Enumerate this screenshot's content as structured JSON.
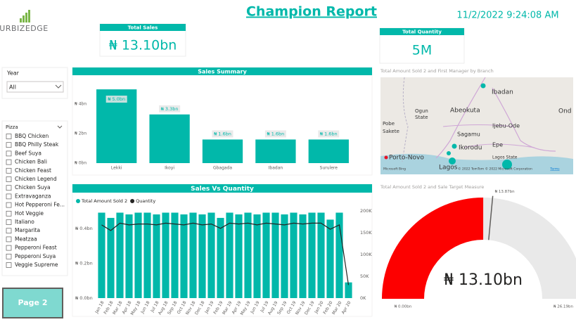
{
  "header": {
    "logo": "URBIZEDGE",
    "title": "Champion Report",
    "datetime": "11/2/2022 9:24:08 AM"
  },
  "cards": [
    {
      "title": "Total Sales",
      "value": "₦ 13.10bn"
    },
    {
      "title": "Total Quantity",
      "value": "5M"
    }
  ],
  "slicers": {
    "year": {
      "title": "Year",
      "selected": "All"
    },
    "pizza": {
      "title": "Pizza",
      "items": [
        "BBQ Chicken",
        "BBQ Philly Steak",
        "Beef Suya",
        "Chicken Bali",
        "Chicken Feast",
        "Chicken Legend",
        "Chicken Suya",
        "Extravaganza",
        "Hot Pepperoni Fe...",
        "Hot Veggie",
        "Italiano",
        "Margarita",
        "Meatzaa",
        "Pepperoni Feast",
        "Pepperoni Suya",
        "Veggie Supreme"
      ]
    }
  },
  "button": "Page 2",
  "map": {
    "title": "Total Amount Sold 2 and First Manager by Branch",
    "labels": [
      "Ibadan",
      "Ogun",
      "State",
      "Abeokuta",
      "Sakete",
      "Pobe",
      "Sagamu",
      "Ijebu-Ode",
      "Ikorodu",
      "Epe",
      "Lagos State",
      "Porto-Novo",
      "Lagos",
      "Ond"
    ],
    "provider": "Microsoft Bing",
    "attribution": "© 2022 TomTom © 2022 Microsoft Corporation",
    "terms": "Terms"
  },
  "chart_data": [
    {
      "type": "bar",
      "title": "Sales Summary",
      "categories": [
        "Lekki",
        "Ikoyi",
        "Gbagada",
        "Ibadan",
        "Surulere"
      ],
      "values": [
        5.0,
        3.3,
        1.6,
        1.6,
        1.6
      ],
      "value_labels": [
        "₦ 5.0bn",
        "₦ 3.3bn",
        "₦ 1.6bn",
        "₦ 1.6bn",
        "₦ 1.6bn"
      ],
      "color": "#01b8aa",
      "ylim": [
        0,
        5.1
      ],
      "yticks": [
        {
          "value": 0,
          "label": "₦ 0bn"
        },
        {
          "value": 2,
          "label": "₦ 2bn"
        },
        {
          "value": 4,
          "label": "₦ 4bn"
        }
      ]
    },
    {
      "type": "combo",
      "title": "Sales Vs Quantity",
      "categories": [
        "Jan 18",
        "Feb 18",
        "Mar 18",
        "Apr 18",
        "May 18",
        "Jun 18",
        "Jul 18",
        "Aug 18",
        "Sep 18",
        "Oct 18",
        "Nov 18",
        "Dec 18",
        "Jan 19",
        "Feb 19",
        "Mar 19",
        "Apr 19",
        "May 19",
        "Jun 19",
        "Jul 19",
        "Aug 19",
        "Sep 19",
        "Oct 19",
        "Nov 19",
        "Dec 19",
        "Jan 20",
        "Feb 20",
        "Mar 20",
        "Apr 20"
      ],
      "series": [
        {
          "name": "Total Amount Sold 2",
          "color": "#01b8aa",
          "axis": "y",
          "values": [
            0.49,
            0.46,
            0.49,
            0.48,
            0.49,
            0.49,
            0.48,
            0.49,
            0.49,
            0.48,
            0.49,
            0.48,
            0.49,
            0.46,
            0.49,
            0.48,
            0.49,
            0.48,
            0.49,
            0.49,
            0.48,
            0.49,
            0.48,
            0.49,
            0.49,
            0.45,
            0.49,
            0.09
          ]
        },
        {
          "name": "Quantity",
          "color": "#252423",
          "axis": "y2",
          "values": [
            168,
            155,
            172,
            168,
            170,
            170,
            168,
            172,
            170,
            168,
            172,
            168,
            170,
            160,
            172,
            170,
            172,
            168,
            172,
            170,
            168,
            172,
            170,
            172,
            172,
            158,
            168,
            30
          ]
        }
      ],
      "ylim": [
        0,
        0.5
      ],
      "yticks": [
        {
          "value": 0,
          "label": "₦ 0.0bn"
        },
        {
          "value": 0.2,
          "label": "₦ 0.2bn"
        },
        {
          "value": 0.4,
          "label": "₦ 0.4bn"
        }
      ],
      "y2lim": [
        0,
        200
      ],
      "y2ticks": [
        {
          "value": 0,
          "label": "0K"
        },
        {
          "value": 50,
          "label": "50K"
        },
        {
          "value": 100,
          "label": "100K"
        },
        {
          "value": 150,
          "label": "150K"
        },
        {
          "value": 200,
          "label": "200K"
        }
      ]
    },
    {
      "type": "gauge",
      "title": "Total Amount Sold 2 and Sale Target Measure",
      "value": 13.1,
      "value_label": "₦ 13.10bn",
      "min": 0,
      "min_label": "₦ 0.00bn",
      "max": 26.19,
      "max_label": "₦ 26.19bn",
      "target": 13.87,
      "target_label": "₦ 13.87bn",
      "color": "#fd0000",
      "track_color": "#e9e9e9"
    }
  ]
}
